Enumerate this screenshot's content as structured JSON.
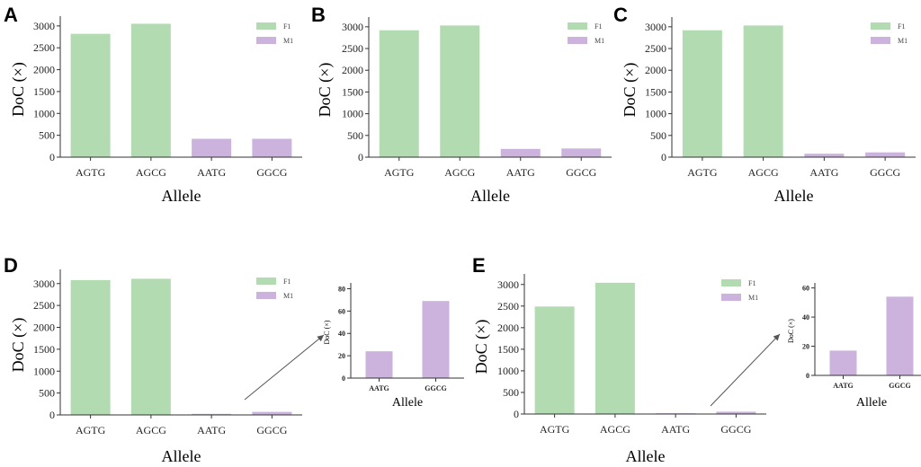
{
  "colors": {
    "F1": "#b2dbb2",
    "M1": "#cbb3dd",
    "axis": "#333333",
    "arrow": "#555555"
  },
  "chart_data": [
    {
      "panel": "A",
      "type": "bar",
      "categories": [
        "AGTG",
        "AGCG",
        "AATG",
        "GGCG"
      ],
      "values": [
        2820,
        3050,
        420,
        420
      ],
      "bar_series": [
        "F1",
        "F1",
        "M1",
        "M1"
      ],
      "legend": [
        "F1",
        "M1"
      ],
      "xlabel": "Allele",
      "ylabel": "DoC (×)",
      "ylim": [
        0,
        3100
      ],
      "yticks": [
        0,
        500,
        1000,
        1500,
        2000,
        2500,
        3000
      ]
    },
    {
      "panel": "B",
      "type": "bar",
      "categories": [
        "AGTG",
        "AGCG",
        "AATG",
        "GGCG"
      ],
      "values": [
        2920,
        3030,
        190,
        200
      ],
      "bar_series": [
        "F1",
        "F1",
        "M1",
        "M1"
      ],
      "legend": [
        "F1",
        "M1"
      ],
      "xlabel": "Allele",
      "ylabel": "DoC (×)",
      "ylim": [
        0,
        3100
      ],
      "yticks": [
        0,
        500,
        1000,
        1500,
        2000,
        2500,
        3000
      ]
    },
    {
      "panel": "C",
      "type": "bar",
      "categories": [
        "AGTG",
        "AGCG",
        "AATG",
        "GGCG"
      ],
      "values": [
        2920,
        3030,
        80,
        110
      ],
      "bar_series": [
        "F1",
        "F1",
        "M1",
        "M1"
      ],
      "legend": [
        "F1",
        "M1"
      ],
      "xlabel": "Allele",
      "ylabel": "DoC (×)",
      "ylim": [
        0,
        3100
      ],
      "yticks": [
        0,
        500,
        1000,
        1500,
        2000,
        2500,
        3000
      ]
    },
    {
      "panel": "D",
      "type": "bar",
      "categories": [
        "AGTG",
        "AGCG",
        "AATG",
        "GGCG"
      ],
      "values": [
        3080,
        3110,
        24,
        69
      ],
      "bar_series": [
        "F1",
        "F1",
        "M1",
        "M1"
      ],
      "legend": [
        "F1",
        "M1"
      ],
      "xlabel": "Allele",
      "ylabel": "DoC (×)",
      "ylim": [
        0,
        3200
      ],
      "yticks": [
        0,
        500,
        1000,
        1500,
        2000,
        2500,
        3000
      ],
      "inset": {
        "categories": [
          "AATG",
          "GGCG"
        ],
        "values": [
          24,
          69
        ],
        "bar_series": [
          "M1",
          "M1"
        ],
        "xlabel": "Allele",
        "ylabel": "DoC (×)",
        "ylim": [
          0,
          82
        ],
        "yticks": [
          0,
          20,
          40,
          60,
          80
        ]
      }
    },
    {
      "panel": "E",
      "type": "bar",
      "categories": [
        "AGTG",
        "AGCG",
        "AATG",
        "GGCG"
      ],
      "values": [
        2490,
        3040,
        17,
        54
      ],
      "bar_series": [
        "F1",
        "F1",
        "M1",
        "M1"
      ],
      "legend": [
        "F1",
        "M1"
      ],
      "xlabel": "Allele",
      "ylabel": "DoC (×)",
      "ylim": [
        0,
        3120
      ],
      "yticks": [
        0,
        500,
        1000,
        1500,
        2000,
        2500,
        3000
      ],
      "inset": {
        "categories": [
          "AATG",
          "GGCG"
        ],
        "values": [
          17,
          54
        ],
        "bar_series": [
          "M1",
          "M1"
        ],
        "xlabel": "Allele",
        "ylabel": "DoC (×)",
        "ylim": [
          0,
          61
        ],
        "yticks": [
          0,
          20,
          40,
          60
        ]
      }
    }
  ]
}
